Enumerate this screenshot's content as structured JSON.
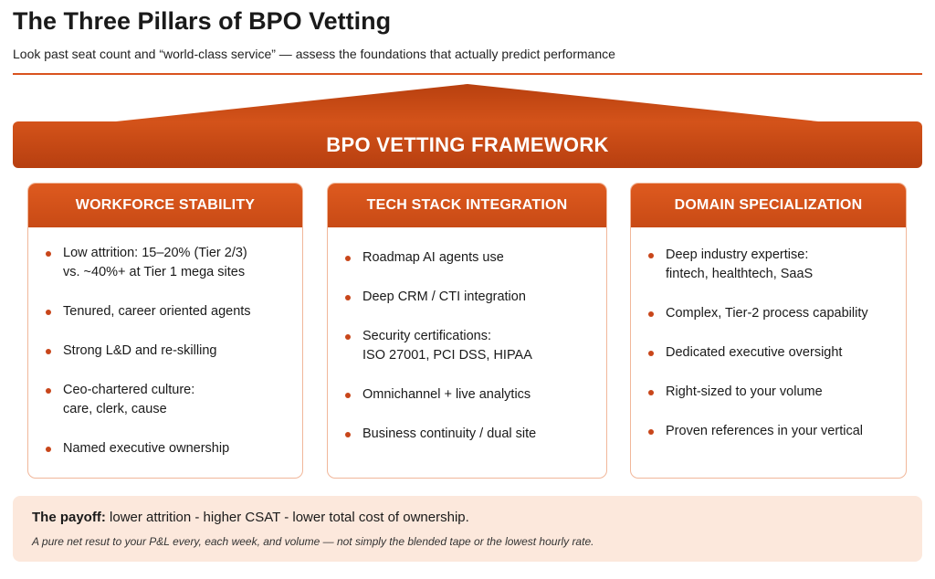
{
  "header": {
    "title": "The Three Pillars of BPO Vetting",
    "subtitle": "Look past seat count and “world-class service” — assess the foundations that actually predict performance"
  },
  "framework": {
    "label": "BPO VETTING FRAMEWORK"
  },
  "pillars": [
    {
      "title": "WORKFORCE STABILITY",
      "items": [
        [
          "Low attrition: 15–20% (Tier 2/3)",
          "vs. ~40%+ at Tier 1 mega sites"
        ],
        [
          "Tenured, career oriented agents"
        ],
        [
          "Strong L&D and re-skilling"
        ],
        [
          "Ceo-chartered culture:",
          "care, clerk, cause"
        ],
        [
          "Named executive ownership"
        ]
      ]
    },
    {
      "title": "TECH STACK INTEGRATION",
      "items": [
        [
          "Roadmap AI agents use"
        ],
        [
          "Deep CRM / CTI integration"
        ],
        [
          "Security certifications:",
          "ISO 27001, PCI DSS, HIPAA"
        ],
        [
          "Omnichannel + live analytics"
        ],
        [
          "Business continuity / dual site"
        ]
      ]
    },
    {
      "title": "DOMAIN SPECIALIZATION",
      "items": [
        [
          "Deep industry expertise:",
          "fintech, healthtech, SaaS"
        ],
        [
          "Complex, Tier-2 process capability"
        ],
        [
          "Dedicated executive oversight"
        ],
        [
          "Right-sized to your volume"
        ],
        [
          "Proven references in your vertical"
        ]
      ]
    }
  ],
  "footer": {
    "payoff_label": "The payoff:",
    "payoff_text": "lower attrition - higher CSAT - lower total cost of ownership.",
    "note": "A pure net resut to your P&L every, each week, and volume — not simply the blended tape or the lowest hourly rate."
  }
}
